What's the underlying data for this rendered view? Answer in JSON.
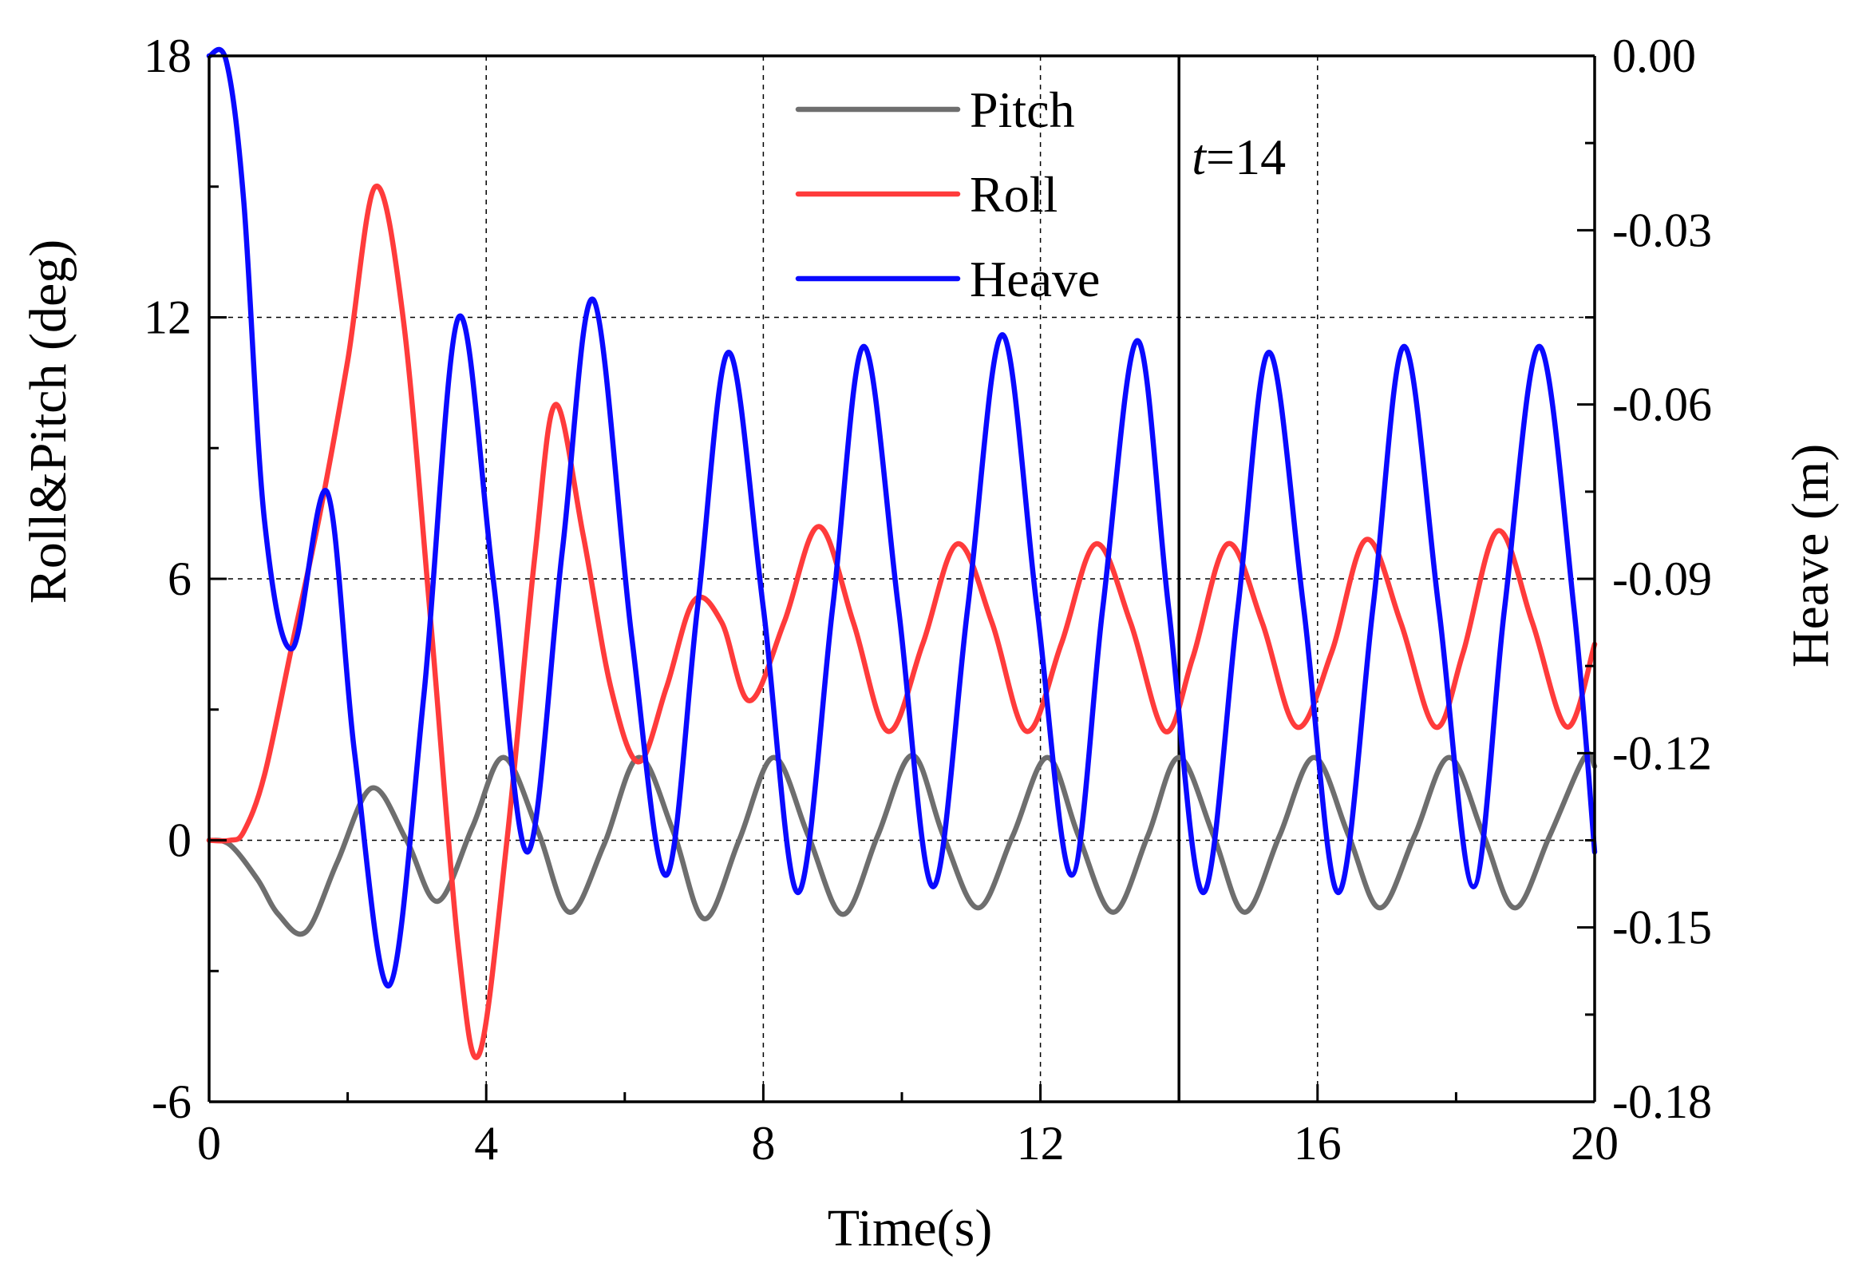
{
  "chart_data": {
    "type": "line",
    "xlabel": "Time(s)",
    "ylabel_left": "Roll&Pitch (deg)",
    "ylabel_right": "Heave (m)",
    "xlim": [
      0,
      20
    ],
    "ylim_left": [
      -6,
      18
    ],
    "ylim_right": [
      -0.18,
      0.0
    ],
    "x_ticks": [
      0,
      4,
      8,
      12,
      16,
      20
    ],
    "x_tick_labels": [
      "0",
      "4",
      "8",
      "12",
      "16",
      "20"
    ],
    "y_left_ticks": [
      -6,
      0,
      6,
      12,
      18
    ],
    "y_left_tick_labels": [
      "-6",
      "0",
      "6",
      "12",
      "18"
    ],
    "y_right_ticks": [
      0.0,
      -0.03,
      -0.06,
      -0.09,
      -0.12,
      -0.15,
      -0.18
    ],
    "y_right_tick_labels": [
      "0.00",
      "-0.03",
      "-0.06",
      "-0.09",
      "-0.12",
      "-0.15",
      "-0.18"
    ],
    "grid": "dashed",
    "legend_position": "top-center",
    "marker_line": {
      "x": 14,
      "label_italic": "t",
      "label_rest": "=14"
    },
    "series": [
      {
        "name": "Pitch",
        "axis": "left",
        "color": "#6e6e6e",
        "x": [
          0,
          0.3,
          0.7,
          1.0,
          1.4,
          1.85,
          2.35,
          2.85,
          3.3,
          3.8,
          4.25,
          4.75,
          5.2,
          5.7,
          6.2,
          6.7,
          7.15,
          7.65,
          8.15,
          8.65,
          9.15,
          9.65,
          10.15,
          10.6,
          11.1,
          11.6,
          12.1,
          12.55,
          13.05,
          13.55,
          14.0,
          14.5,
          14.95,
          15.45,
          15.95,
          16.45,
          16.9,
          17.4,
          17.9,
          18.4,
          18.85,
          19.35,
          19.85,
          20.0
        ],
        "values": [
          0,
          -0.1,
          -0.9,
          -1.7,
          -2.1,
          -0.5,
          1.2,
          0.0,
          -1.4,
          0.3,
          1.9,
          0.2,
          -1.65,
          -0.1,
          1.9,
          0.2,
          -1.8,
          0.0,
          1.9,
          0.1,
          -1.7,
          0.1,
          1.95,
          0.1,
          -1.55,
          0.1,
          1.9,
          0.1,
          -1.65,
          0.1,
          1.9,
          0.1,
          -1.65,
          0.1,
          1.9,
          0.1,
          -1.55,
          0.1,
          1.9,
          0.1,
          -1.55,
          0.1,
          1.9,
          1.7
        ]
      },
      {
        "name": "Roll",
        "axis": "left",
        "color": "#ff3b3b",
        "x": [
          0,
          0.3,
          0.5,
          0.8,
          1.2,
          1.6,
          2.0,
          2.4,
          2.8,
          3.2,
          3.6,
          3.9,
          4.3,
          4.7,
          5.0,
          5.4,
          5.8,
          6.2,
          6.6,
          7.0,
          7.4,
          7.8,
          8.3,
          8.8,
          9.3,
          9.8,
          10.3,
          10.8,
          11.3,
          11.8,
          12.3,
          12.8,
          13.3,
          13.8,
          14.2,
          14.7,
          15.2,
          15.7,
          16.2,
          16.7,
          17.2,
          17.7,
          18.1,
          18.6,
          19.1,
          19.6,
          20.0
        ],
        "values": [
          0,
          0,
          0.2,
          1.5,
          4.5,
          7.5,
          11,
          15,
          12,
          5,
          -2.5,
          -4.9,
          0,
          6.5,
          10,
          7,
          3.5,
          1.8,
          3.5,
          5.5,
          5,
          3.2,
          5,
          7.2,
          5,
          2.5,
          4.5,
          6.8,
          5,
          2.5,
          4.5,
          6.8,
          5,
          2.5,
          4.2,
          6.8,
          5,
          2.6,
          4.3,
          6.9,
          5,
          2.6,
          4.3,
          7.1,
          5,
          2.6,
          4.5
        ]
      },
      {
        "name": "Heave",
        "axis": "right",
        "color": "#0a0aff",
        "x": [
          0,
          0.25,
          0.5,
          0.8,
          1.2,
          1.7,
          2.1,
          2.6,
          3.1,
          3.6,
          4.1,
          4.6,
          5.1,
          5.55,
          6.1,
          6.6,
          7.05,
          7.5,
          8.0,
          8.5,
          9.0,
          9.45,
          9.95,
          10.45,
          10.95,
          11.45,
          11.95,
          12.45,
          12.9,
          13.4,
          13.85,
          14.35,
          14.85,
          15.3,
          15.8,
          16.3,
          16.8,
          17.25,
          17.75,
          18.25,
          18.7,
          19.2,
          19.7,
          20.0
        ],
        "values": [
          0.0,
          -0.001,
          -0.025,
          -0.08,
          -0.102,
          -0.075,
          -0.12,
          -0.16,
          -0.11,
          -0.045,
          -0.09,
          -0.137,
          -0.085,
          -0.042,
          -0.1,
          -0.141,
          -0.095,
          -0.051,
          -0.095,
          -0.144,
          -0.095,
          -0.05,
          -0.095,
          -0.143,
          -0.095,
          -0.048,
          -0.095,
          -0.141,
          -0.095,
          -0.049,
          -0.095,
          -0.144,
          -0.095,
          -0.051,
          -0.095,
          -0.144,
          -0.095,
          -0.05,
          -0.095,
          -0.143,
          -0.095,
          -0.05,
          -0.095,
          -0.137
        ]
      }
    ]
  }
}
